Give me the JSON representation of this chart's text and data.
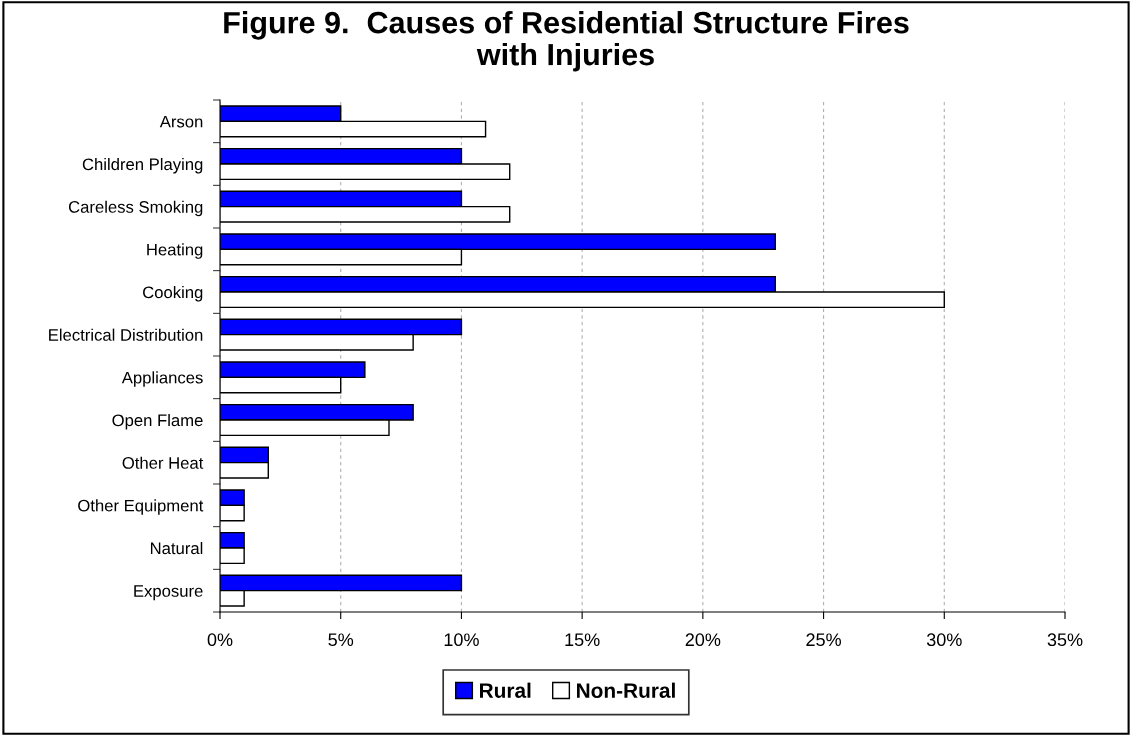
{
  "chart_data": {
    "type": "bar",
    "orientation": "horizontal",
    "title": "Figure 9.  Causes of Residential Structure Fires\nwith Injuries",
    "categories": [
      "Arson",
      "Children Playing",
      "Careless Smoking",
      "Heating",
      "Cooking",
      "Electrical Distribution",
      "Appliances",
      "Open Flame",
      "Other Heat",
      "Other Equipment",
      "Natural",
      "Exposure"
    ],
    "series": [
      {
        "name": "Rural",
        "color": "#0000ff",
        "values": [
          5,
          10,
          10,
          23,
          23,
          10,
          6,
          8,
          2,
          1,
          1,
          10
        ]
      },
      {
        "name": "Non-Rural",
        "color": "#ffffff",
        "values": [
          11,
          12,
          12,
          10,
          30,
          8,
          5,
          7,
          2,
          1,
          1,
          1
        ]
      }
    ],
    "xlim": [
      0,
      35
    ],
    "xticks": [
      {
        "value": 0,
        "label": "0%"
      },
      {
        "value": 5,
        "label": "5%"
      },
      {
        "value": 10,
        "label": "10%"
      },
      {
        "value": 15,
        "label": "15%"
      },
      {
        "value": 20,
        "label": "20%"
      },
      {
        "value": 25,
        "label": "25%"
      },
      {
        "value": 30,
        "label": "30%"
      },
      {
        "value": 35,
        "label": "35%"
      }
    ],
    "grid": "x",
    "legend": "bottom"
  }
}
